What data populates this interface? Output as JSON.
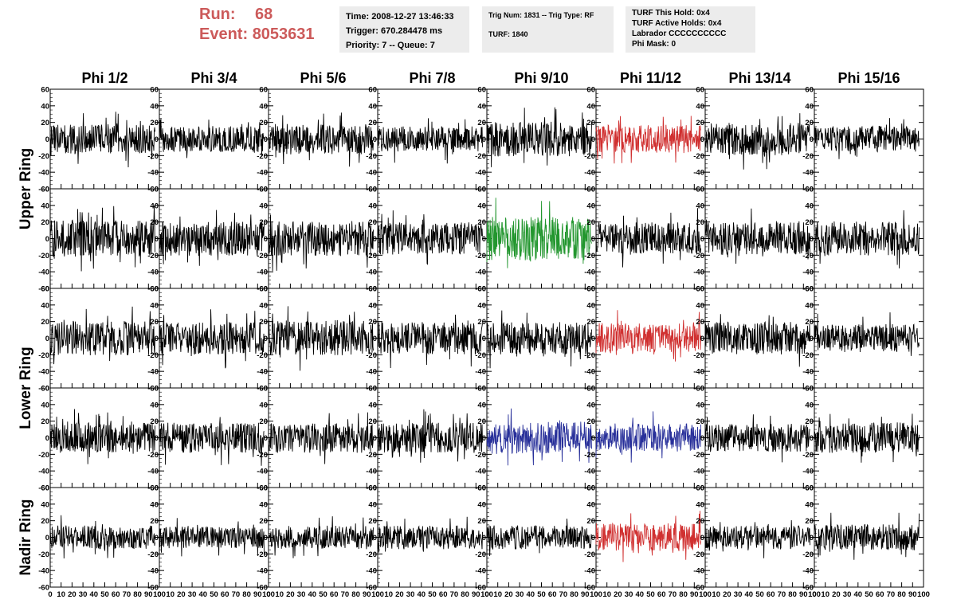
{
  "header": {
    "run_label": "Run:",
    "run_value": "68",
    "event_label": "Event:",
    "event_value": "8053631",
    "time": "Time: 2008-12-27 13:46:33",
    "trigger": "Trigger: 670.284478 ms",
    "priority": "Priority: 7 -- Queue: 7",
    "trig_num": "Trig Num: 1831 -- Trig Type: RF",
    "turf": "TURF: 1840",
    "turf_this_hold": "TURF This Hold: 0x4",
    "turf_active_holds": "TURF Active Holds: 0x4",
    "labrador": "Labrador CCCCCCCCCC",
    "phi_mask": "Phi Mask: 0"
  },
  "colors": {
    "default_trace": "#000000",
    "red_trace": "#d03030",
    "green_trace": "#22962e",
    "blue_trace": "#28309a",
    "run_text": "#cc5a5a",
    "info_bg": "#ececec"
  },
  "chart_data": {
    "type": "line",
    "columns": [
      "Phi 1/2",
      "Phi 3/4",
      "Phi 5/6",
      "Phi 7/8",
      "Phi 9/10",
      "Phi 11/12",
      "Phi 13/14",
      "Phi 15/16"
    ],
    "rows": [
      "Upper Ring",
      "Upper Ring",
      "Lower Ring",
      "Lower Ring",
      "Nadir Ring"
    ],
    "row_group_labels": [
      {
        "label": "Upper Ring",
        "rows": [
          0,
          1
        ]
      },
      {
        "label": "Lower Ring",
        "rows": [
          2,
          3
        ]
      },
      {
        "label": "Nadir Ring",
        "rows": [
          4
        ]
      }
    ],
    "xlim": [
      0,
      100
    ],
    "ylim": [
      -60,
      60
    ],
    "y_ticks": [
      -60,
      -40,
      -20,
      0,
      20,
      40,
      60
    ],
    "x_ticks": [
      0,
      10,
      20,
      30,
      40,
      50,
      60,
      70,
      80,
      90,
      100
    ],
    "trace_x_range": [
      0,
      96
    ],
    "samples_per_trace": 260,
    "trace_colors": [
      [
        "black",
        "black",
        "black",
        "black",
        "black",
        "red",
        "black",
        "black"
      ],
      [
        "black",
        "black",
        "black",
        "black",
        "green",
        "black",
        "black",
        "black"
      ],
      [
        "black",
        "black",
        "black",
        "black",
        "black",
        "red",
        "black",
        "black"
      ],
      [
        "black",
        "black",
        "black",
        "black",
        "blue",
        "blue",
        "black",
        "black"
      ],
      [
        "black",
        "black",
        "black",
        "black",
        "black",
        "red",
        "black",
        "black"
      ]
    ],
    "trace_amplitudes": [
      [
        14,
        12,
        14,
        12,
        16,
        13,
        15,
        12
      ],
      [
        17,
        16,
        16,
        15,
        20,
        15,
        15,
        16
      ],
      [
        16,
        15,
        16,
        15,
        15,
        14,
        15,
        13
      ],
      [
        14,
        14,
        14,
        14,
        15,
        13,
        13,
        14
      ],
      [
        11,
        10,
        11,
        11,
        11,
        13,
        11,
        12
      ]
    ],
    "grid": false,
    "legend": "none"
  }
}
